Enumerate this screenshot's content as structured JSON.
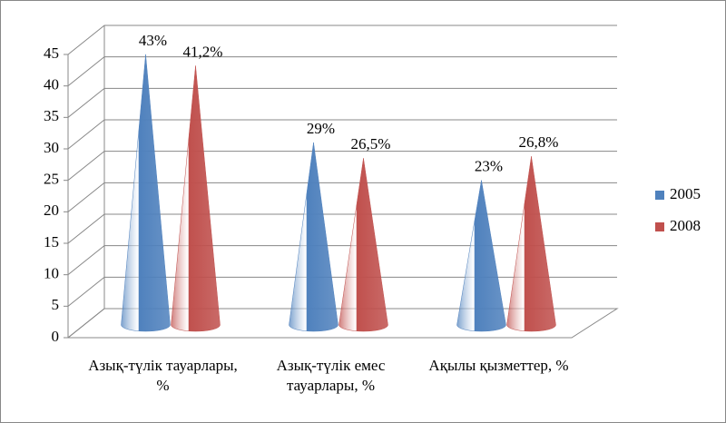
{
  "chart_data": {
    "type": "cone",
    "categories": [
      "Азық-түлік тауарлары, %",
      "Азық-түлік емес тауарлары, %",
      "Ақылы қызметтер, %"
    ],
    "series": [
      {
        "name": "2005",
        "color": "#4f81bd",
        "values": [
          43,
          29,
          23
        ],
        "value_labels": [
          "43%",
          "29%",
          "23%"
        ]
      },
      {
        "name": "2008",
        "color": "#c0504d",
        "values": [
          41.2,
          26.5,
          26.8
        ],
        "value_labels": [
          "41,2%",
          "26,5%",
          "26,8%"
        ]
      }
    ],
    "ylim": [
      0,
      45
    ],
    "yticks": [
      0,
      5,
      10,
      15,
      20,
      25,
      30,
      35,
      40,
      45
    ],
    "grid": true,
    "legend": "right"
  }
}
